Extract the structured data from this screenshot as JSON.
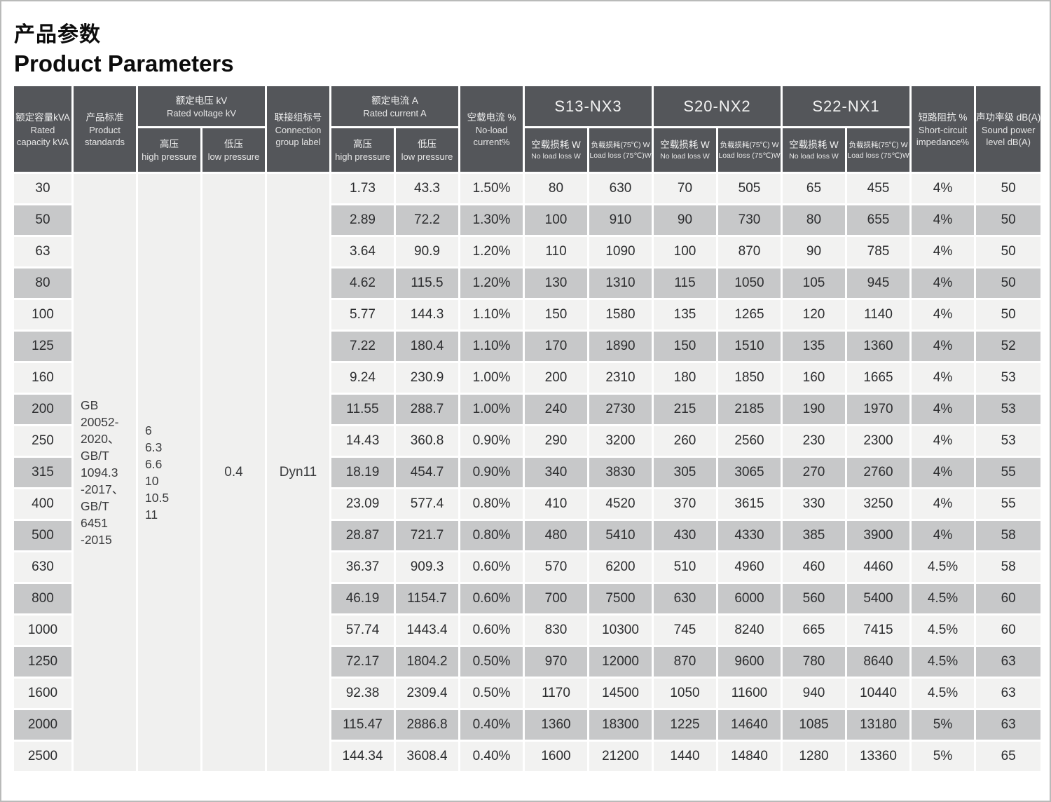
{
  "page": {
    "title_cn": "产品参数",
    "title_en": "Product Parameters"
  },
  "table": {
    "headers": {
      "capacity": {
        "cn": "额定容量kVA",
        "en": "Rated capacity kVA"
      },
      "standards": {
        "cn": "产品标准",
        "en": "Product standards"
      },
      "voltage": {
        "cn": "额定电压 kV",
        "en": "Rated voltage kV"
      },
      "high_pressure": {
        "cn": "高压",
        "en": "high pressure"
      },
      "low_pressure": {
        "cn": "低压",
        "en": "low pressure"
      },
      "connection": {
        "cn": "联接组标号",
        "en": "Connection group label"
      },
      "current": {
        "cn": "额定电流 A",
        "en": "Rated current A"
      },
      "noload_current": {
        "cn": "空载电流 %",
        "en": "No-load current%"
      },
      "s13": "S13-NX3",
      "s20": "S20-NX2",
      "s22": "S22-NX1",
      "noload_loss": {
        "cn": "空载损耗 W",
        "en": "No load loss W"
      },
      "load_loss": {
        "cn": "负载损耗(75℃) W",
        "en": "Load loss (75℃)W"
      },
      "impedance": {
        "cn": "短路阻抗 %",
        "en": "Short-circuit impedance%"
      },
      "sound": {
        "cn": "声功率级 dB(A)",
        "en": "Sound power level dB(A)"
      }
    },
    "merged": {
      "standards_lines": [
        "GB",
        "20052-",
        "2020、",
        "GB/T",
        "1094.3",
        "-2017、",
        "GB/T",
        "6451",
        "-2015"
      ],
      "high_pressure_values": [
        "6",
        "6.3",
        "6.6",
        "10",
        "10.5",
        "11"
      ],
      "low_pressure_value": "0.4",
      "connection_value": "Dyn11"
    },
    "row_field_names": [
      "hv-current",
      "lv-current",
      "noload-current",
      "s13-noload-loss",
      "s13-load-loss",
      "s20-noload-loss",
      "s20-load-loss",
      "s22-noload-loss",
      "s22-load-loss",
      "impedance",
      "sound-level"
    ],
    "rows": [
      [
        "30",
        "1.73",
        "43.3",
        "1.50%",
        "80",
        "630",
        "70",
        "505",
        "65",
        "455",
        "4%",
        "50"
      ],
      [
        "50",
        "2.89",
        "72.2",
        "1.30%",
        "100",
        "910",
        "90",
        "730",
        "80",
        "655",
        "4%",
        "50"
      ],
      [
        "63",
        "3.64",
        "90.9",
        "1.20%",
        "110",
        "1090",
        "100",
        "870",
        "90",
        "785",
        "4%",
        "50"
      ],
      [
        "80",
        "4.62",
        "115.5",
        "1.20%",
        "130",
        "1310",
        "115",
        "1050",
        "105",
        "945",
        "4%",
        "50"
      ],
      [
        "100",
        "5.77",
        "144.3",
        "1.10%",
        "150",
        "1580",
        "135",
        "1265",
        "120",
        "1140",
        "4%",
        "50"
      ],
      [
        "125",
        "7.22",
        "180.4",
        "1.10%",
        "170",
        "1890",
        "150",
        "1510",
        "135",
        "1360",
        "4%",
        "52"
      ],
      [
        "160",
        "9.24",
        "230.9",
        "1.00%",
        "200",
        "2310",
        "180",
        "1850",
        "160",
        "1665",
        "4%",
        "53"
      ],
      [
        "200",
        "11.55",
        "288.7",
        "1.00%",
        "240",
        "2730",
        "215",
        "2185",
        "190",
        "1970",
        "4%",
        "53"
      ],
      [
        "250",
        "14.43",
        "360.8",
        "0.90%",
        "290",
        "3200",
        "260",
        "2560",
        "230",
        "2300",
        "4%",
        "53"
      ],
      [
        "315",
        "18.19",
        "454.7",
        "0.90%",
        "340",
        "3830",
        "305",
        "3065",
        "270",
        "2760",
        "4%",
        "55"
      ],
      [
        "400",
        "23.09",
        "577.4",
        "0.80%",
        "410",
        "4520",
        "370",
        "3615",
        "330",
        "3250",
        "4%",
        "55"
      ],
      [
        "500",
        "28.87",
        "721.7",
        "0.80%",
        "480",
        "5410",
        "430",
        "4330",
        "385",
        "3900",
        "4%",
        "58"
      ],
      [
        "630",
        "36.37",
        "909.3",
        "0.60%",
        "570",
        "6200",
        "510",
        "4960",
        "460",
        "4460",
        "4.5%",
        "58"
      ],
      [
        "800",
        "46.19",
        "1154.7",
        "0.60%",
        "700",
        "7500",
        "630",
        "6000",
        "560",
        "5400",
        "4.5%",
        "60"
      ],
      [
        "1000",
        "57.74",
        "1443.4",
        "0.60%",
        "830",
        "10300",
        "745",
        "8240",
        "665",
        "7415",
        "4.5%",
        "60"
      ],
      [
        "1250",
        "72.17",
        "1804.2",
        "0.50%",
        "970",
        "12000",
        "870",
        "9600",
        "780",
        "8640",
        "4.5%",
        "63"
      ],
      [
        "1600",
        "92.38",
        "2309.4",
        "0.50%",
        "1170",
        "14500",
        "1050",
        "11600",
        "940",
        "10440",
        "4.5%",
        "63"
      ],
      [
        "2000",
        "115.47",
        "2886.8",
        "0.40%",
        "1360",
        "18300",
        "1225",
        "14640",
        "1085",
        "13180",
        "5%",
        "63"
      ],
      [
        "2500",
        "144.34",
        "3608.4",
        "0.40%",
        "1600",
        "21200",
        "1440",
        "14840",
        "1280",
        "13360",
        "5%",
        "65"
      ]
    ],
    "colors": {
      "header_bg": "#54565a",
      "row_light": "#f2f2f1",
      "row_dark": "#c7c8c9",
      "merged_bg": "#f0f0ef"
    }
  }
}
